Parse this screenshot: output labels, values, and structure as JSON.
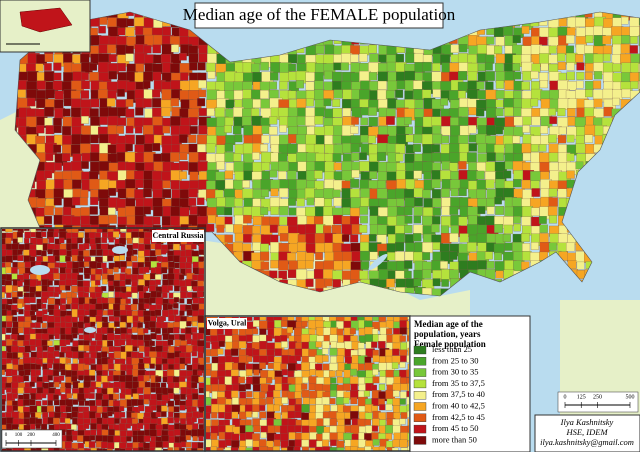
{
  "title": "Median age of the FEMALE population",
  "legend": {
    "title": [
      "Median age of the",
      "population, years",
      "Female population"
    ],
    "items": [
      {
        "label": "less than 25",
        "color": "#2e7d1f"
      },
      {
        "label": "from 25 to 30",
        "color": "#4aa52a"
      },
      {
        "label": "from 30 to 35",
        "color": "#78c83a"
      },
      {
        "label": "from 35 to 37,5",
        "color": "#b5e23c"
      },
      {
        "label": "from 37,5 to 40",
        "color": "#f4f08c"
      },
      {
        "label": "from 40 to 42,5",
        "color": "#f6a623"
      },
      {
        "label": "from 42,5 to 45",
        "color": "#e05a16"
      },
      {
        "label": "from 45 to 50",
        "color": "#c0141a"
      },
      {
        "label": "more than 50",
        "color": "#7e0a0a"
      }
    ]
  },
  "insets": {
    "central": "Central Russia",
    "volga": "Volga, Ural"
  },
  "scale": {
    "main": [
      0,
      125,
      250,
      500
    ],
    "inset": [
      0,
      100,
      200,
      400
    ]
  },
  "credits": [
    "Ilya Kashnitsky",
    "HSE, IDEM",
    "ilya.kashnitsky@gmail.com"
  ]
}
